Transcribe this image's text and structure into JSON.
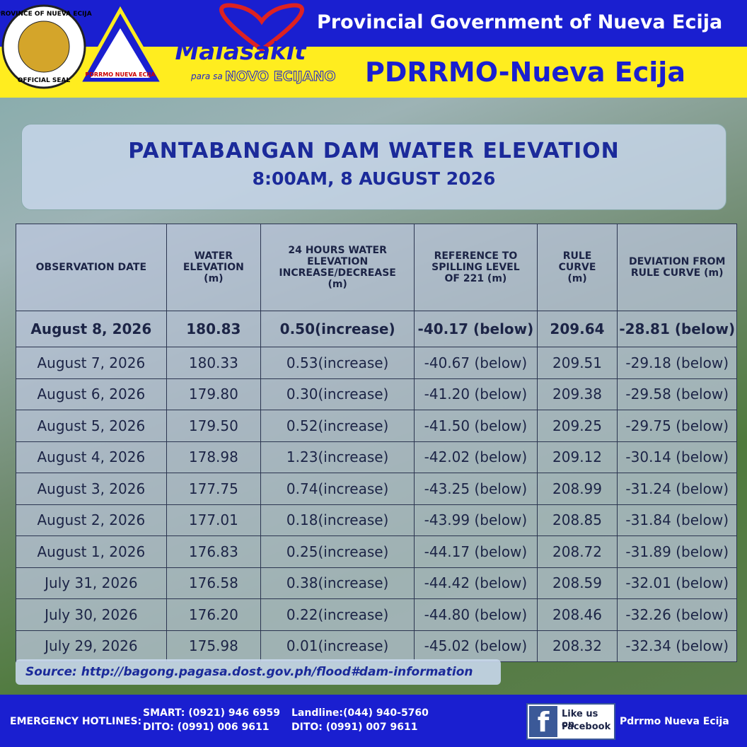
{
  "header": {
    "seal_top": "PROVINCE OF NUEVA ECIJA",
    "seal_bottom": "OFFICIAL SEAL",
    "logo_text": "PDRRMO NUEVA ECIJA",
    "malasakit": "Malasakit",
    "para_sa": "para sa",
    "novo": "NOVO ECIJANO",
    "government": "Provincial Government of Nueva Ecija",
    "office": "PDRRMO-Nueva Ecija"
  },
  "title": "PANTABANGAN DAM WATER ELEVATION",
  "subtitle": "8:00AM, 8 AUGUST 2026",
  "table": {
    "columns": [
      "OBSERVATION DATE",
      "WATER ELEVATION (m)",
      "24 HOURS WATER ELEVATION INCREASE/DECREASE (m)",
      "REFERENCE TO SPILLING LEVEL OF 221 (m)",
      "RULE CURVE (m)",
      "DEVIATION FROM RULE CURVE (m)"
    ],
    "rows": [
      [
        "August 8, 2026",
        "180.83",
        "0.50(increase)",
        "-40.17 (below)",
        "209.64",
        "-28.81 (below)"
      ],
      [
        "August 7, 2026",
        "180.33",
        "0.53(increase)",
        "-40.67 (below)",
        "209.51",
        "-29.18 (below)"
      ],
      [
        "August 6, 2026",
        "179.80",
        "0.30(increase)",
        "-41.20 (below)",
        "209.38",
        "-29.58 (below)"
      ],
      [
        "August 5, 2026",
        "179.50",
        "0.52(increase)",
        "-41.50 (below)",
        "209.25",
        "-29.75 (below)"
      ],
      [
        "August 4, 2026",
        "178.98",
        "1.23(increase)",
        "-42.02 (below)",
        "209.12",
        "-30.14 (below)"
      ],
      [
        "August 3, 2026",
        "177.75",
        "0.74(increase)",
        "-43.25 (below)",
        "208.99",
        "-31.24 (below)"
      ],
      [
        "August 2, 2026",
        "177.01",
        "0.18(increase)",
        "-43.99 (below)",
        "208.85",
        "-31.84 (below)"
      ],
      [
        "August 1, 2026",
        "176.83",
        "0.25(increase)",
        "-44.17 (below)",
        "208.72",
        "-31.89 (below)"
      ],
      [
        "July 31, 2026",
        "176.58",
        "0.38(increase)",
        "-44.42 (below)",
        "208.59",
        "-32.01 (below)"
      ],
      [
        "July 30, 2026",
        "176.20",
        "0.22(increase)",
        "-44.80 (below)",
        "208.46",
        "-32.26 (below)"
      ],
      [
        "July 29, 2026",
        "175.98",
        "0.01(increase)",
        "-45.02 (below)",
        "208.32",
        "-32.34 (below)"
      ]
    ]
  },
  "source": "Source: http://bagong.pagasa.dost.gov.ph/flood#dam-information",
  "footer": {
    "hotlines": "EMERGENCY  HOTLINES:",
    "smart": "SMART: (0921) 946 6959",
    "dito1": "DITO: (0991) 006 9611",
    "landline": "Landline:(044) 940-5760",
    "dito2": "DITO: (0991) 007 9611",
    "like": "Like us on",
    "facebook": "Facebook",
    "page": "Pdrrmo Nueva Ecija"
  }
}
